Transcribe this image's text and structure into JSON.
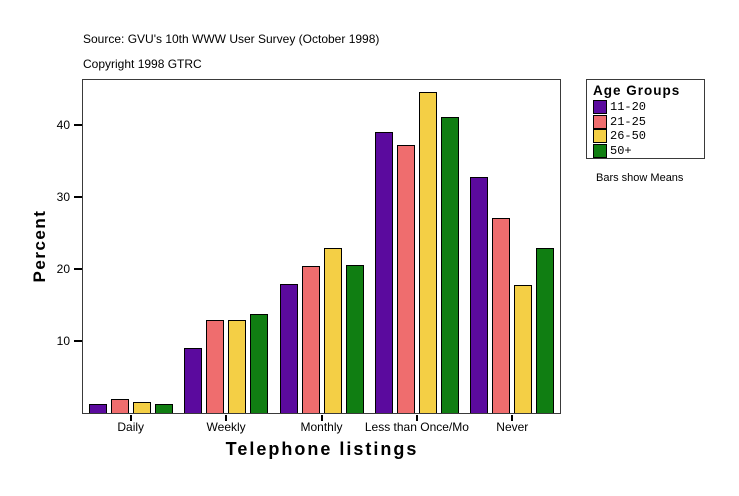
{
  "header": {
    "source_line": "Source: GVU's 10th WWW User Survey (October 1998)",
    "copyright_line": "Copyright 1998 GTRC"
  },
  "chart_data": {
    "type": "bar",
    "title": "",
    "xlabel": "Telephone listings",
    "ylabel": "Percent",
    "categories": [
      "Daily",
      "Weekly",
      "Monthly",
      "Less than Once/Mo",
      "Never"
    ],
    "series": [
      {
        "name": "11-20",
        "color": "#5B0A9E",
        "values": [
          1.2,
          9.1,
          17.9,
          39.1,
          32.8
        ]
      },
      {
        "name": "21-25",
        "color": "#EF6D6E",
        "values": [
          2.0,
          13.0,
          20.4,
          37.3,
          27.1
        ]
      },
      {
        "name": "26-50",
        "color": "#F4CF45",
        "values": [
          1.5,
          13.0,
          23.0,
          44.6,
          17.8
        ]
      },
      {
        "name": "50+",
        "color": "#107E12",
        "values": [
          1.3,
          13.7,
          20.6,
          41.2,
          23.0
        ]
      }
    ],
    "yticks": [
      10,
      20,
      30,
      40
    ],
    "ylim": [
      0,
      46.3
    ],
    "grid": false,
    "legend_title": "Age Groups",
    "legend_position": "right",
    "footnote": "Bars show Means"
  }
}
